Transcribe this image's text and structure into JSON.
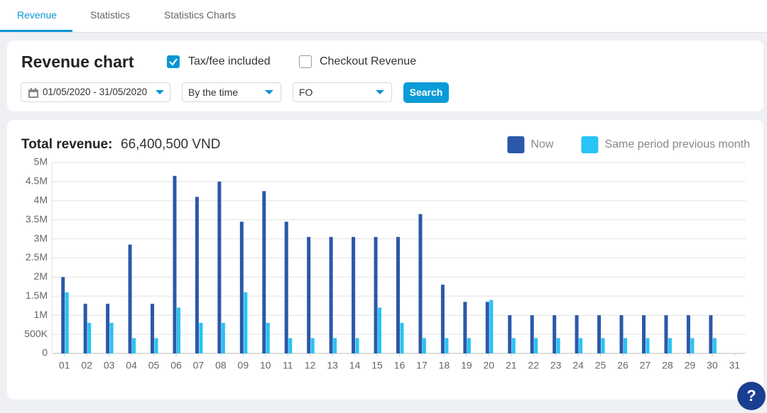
{
  "tabs": [
    "Revenue",
    "Statistics",
    "Statistics Charts"
  ],
  "filters": {
    "title": "Revenue chart",
    "tax_checkbox": "Tax/fee included",
    "checkout_checkbox": "Checkout Revenue",
    "date_range": "01/05/2020 - 31/05/2020",
    "group_by": "By the time",
    "channel": "FO",
    "search_button": "Search"
  },
  "help_button": "?",
  "chart_data": {
    "type": "bar",
    "title": "Total revenue:",
    "subtitle": "66,400,500 VND",
    "categories": [
      "01",
      "02",
      "03",
      "04",
      "05",
      "06",
      "07",
      "08",
      "09",
      "10",
      "11",
      "12",
      "13",
      "14",
      "15",
      "16",
      "17",
      "18",
      "19",
      "20",
      "21",
      "22",
      "23",
      "24",
      "25",
      "26",
      "27",
      "28",
      "29",
      "30",
      "31"
    ],
    "series": [
      {
        "name": "Now",
        "color": "#2b58a9",
        "values": [
          2000000,
          1300000,
          1300000,
          2850000,
          1300000,
          4650000,
          4100000,
          4500000,
          3450000,
          4250000,
          3450000,
          3050000,
          3050000,
          3050000,
          3050000,
          3050000,
          3650000,
          1800000,
          1350000,
          1350000,
          1000000,
          1000000,
          1000000,
          1000000,
          1000000,
          1000000,
          1000000,
          1000000,
          1000000,
          1000000,
          null
        ]
      },
      {
        "name": "Same period previous month",
        "color": "#29c3f5",
        "values": [
          1600000,
          800000,
          800000,
          400000,
          400000,
          1200000,
          800000,
          800000,
          1600000,
          800000,
          400000,
          400000,
          400000,
          400000,
          1200000,
          800000,
          400000,
          400000,
          400000,
          1400000,
          400000,
          400000,
          400000,
          400000,
          400000,
          400000,
          400000,
          400000,
          400000,
          400000,
          null
        ]
      }
    ],
    "ylim": [
      0,
      5000000
    ],
    "yticks": [
      0,
      {
        "value": 500000,
        "label": "500K"
      },
      {
        "value": 1000000,
        "label": "1M"
      },
      {
        "value": 1500000,
        "label": "1.5M"
      },
      {
        "value": 2000000,
        "label": "2M"
      },
      {
        "value": 2500000,
        "label": "2.5M"
      },
      {
        "value": 3000000,
        "label": "3M"
      },
      {
        "value": 3500000,
        "label": "3.5M"
      },
      {
        "value": 4000000,
        "label": "4M"
      },
      {
        "value": 4500000,
        "label": "4.5M"
      },
      {
        "value": 5000000,
        "label": "5M"
      }
    ],
    "grid": true,
    "legend": "top-right"
  }
}
